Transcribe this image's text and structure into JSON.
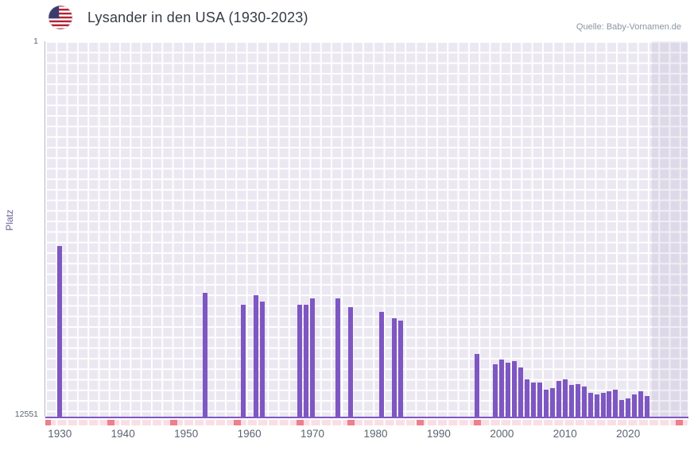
{
  "header": {
    "title": "Lysander in den USA (1930-2023)",
    "source": "Quelle: Baby-Vornamen.de"
  },
  "chart_data": {
    "type": "bar",
    "title": "Lysander in den USA (1930-2023)",
    "ylabel": "Platz",
    "y_axis": {
      "top_label": "1",
      "bottom_label": "12551",
      "min": 1,
      "max": 12551,
      "inverted": true
    },
    "x_axis": {
      "tick_years": [
        1930,
        1940,
        1950,
        1960,
        1970,
        1980,
        1990,
        2000,
        2010,
        2020
      ],
      "range_years": [
        1928,
        2029
      ]
    },
    "bar_color": "#7e57c2",
    "plot_bg": "#ebe8f2",
    "grid": true,
    "legend": "none",
    "future_band_start_year": 2023.7,
    "points": [
      {
        "year": 1930,
        "rank": 6850
      },
      {
        "year": 1953,
        "rank": 8400
      },
      {
        "year": 1959,
        "rank": 8800
      },
      {
        "year": 1961,
        "rank": 8500
      },
      {
        "year": 1962,
        "rank": 8700
      },
      {
        "year": 1968,
        "rank": 8800
      },
      {
        "year": 1969,
        "rank": 8800
      },
      {
        "year": 1970,
        "rank": 8600
      },
      {
        "year": 1974,
        "rank": 8600
      },
      {
        "year": 1976,
        "rank": 8900
      },
      {
        "year": 1981,
        "rank": 9050
      },
      {
        "year": 1983,
        "rank": 9250
      },
      {
        "year": 1984,
        "rank": 9350
      },
      {
        "year": 1996,
        "rank": 10450
      },
      {
        "year": 1999,
        "rank": 10800
      },
      {
        "year": 2000,
        "rank": 10650
      },
      {
        "year": 2001,
        "rank": 10750
      },
      {
        "year": 2002,
        "rank": 10700
      },
      {
        "year": 2003,
        "rank": 10900
      },
      {
        "year": 2004,
        "rank": 11300
      },
      {
        "year": 2005,
        "rank": 11400
      },
      {
        "year": 2006,
        "rank": 11400
      },
      {
        "year": 2007,
        "rank": 11650
      },
      {
        "year": 2008,
        "rank": 11600
      },
      {
        "year": 2009,
        "rank": 11350
      },
      {
        "year": 2010,
        "rank": 11300
      },
      {
        "year": 2011,
        "rank": 11500
      },
      {
        "year": 2012,
        "rank": 11450
      },
      {
        "year": 2013,
        "rank": 11550
      },
      {
        "year": 2014,
        "rank": 11750
      },
      {
        "year": 2015,
        "rank": 11800
      },
      {
        "year": 2016,
        "rank": 11750
      },
      {
        "year": 2017,
        "rank": 11700
      },
      {
        "year": 2018,
        "rank": 11650
      },
      {
        "year": 2019,
        "rank": 12000
      },
      {
        "year": 2020,
        "rank": 11950
      },
      {
        "year": 2021,
        "rank": 11800
      },
      {
        "year": 2022,
        "rank": 11700
      },
      {
        "year": 2023,
        "rank": 11850
      }
    ],
    "missing_marks_years": [
      1928,
      1938,
      1948,
      1958,
      1968,
      1976,
      1987,
      1996,
      2028
    ]
  }
}
